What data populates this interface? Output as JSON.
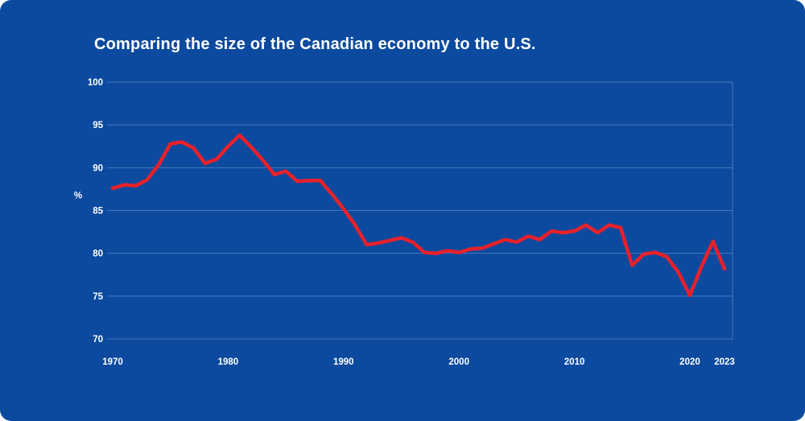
{
  "page": {
    "background_color": "#0b4a9f",
    "text_color": "#ffffff"
  },
  "chart_data": {
    "type": "line",
    "title": "Comparing the size of the Canadian economy to the U.S.",
    "ylabel": "%",
    "xlabel": "",
    "ylim": [
      70,
      100
    ],
    "ytick_step": 5,
    "yticks": [
      70,
      75,
      80,
      85,
      90,
      95,
      100
    ],
    "xticks": [
      1970,
      1980,
      1990,
      2000,
      2010,
      2020,
      2023
    ],
    "grid": true,
    "legend": "none",
    "line_color": "#e8212b",
    "grid_color": "rgba(255,255,255,0.25)",
    "axis_text_color": "#ffffff",
    "x": [
      1970,
      1971,
      1972,
      1973,
      1974,
      1975,
      1976,
      1977,
      1978,
      1979,
      1980,
      1981,
      1982,
      1983,
      1984,
      1985,
      1986,
      1987,
      1988,
      1989,
      1990,
      1991,
      1992,
      1993,
      1994,
      1995,
      1996,
      1997,
      1998,
      1999,
      2000,
      2001,
      2002,
      2003,
      2004,
      2005,
      2006,
      2007,
      2008,
      2009,
      2010,
      2011,
      2012,
      2013,
      2014,
      2015,
      2016,
      2017,
      2018,
      2019,
      2020,
      2021,
      2022,
      2023
    ],
    "values": [
      87.6,
      88.0,
      87.9,
      88.6,
      90.4,
      92.8,
      93.0,
      92.3,
      90.5,
      91.0,
      92.5,
      93.8,
      92.4,
      90.9,
      89.2,
      89.6,
      88.4,
      88.5,
      88.5,
      86.9,
      85.2,
      83.3,
      81.0,
      81.2,
      81.5,
      81.8,
      81.3,
      80.1,
      80.0,
      80.3,
      80.1,
      80.5,
      80.6,
      81.1,
      81.6,
      81.3,
      82.0,
      81.6,
      82.6,
      82.4,
      82.6,
      83.3,
      82.4,
      83.3,
      83.0,
      78.6,
      79.9,
      80.1,
      79.6,
      77.8,
      75.1,
      78.4,
      81.4,
      78.2
    ]
  }
}
